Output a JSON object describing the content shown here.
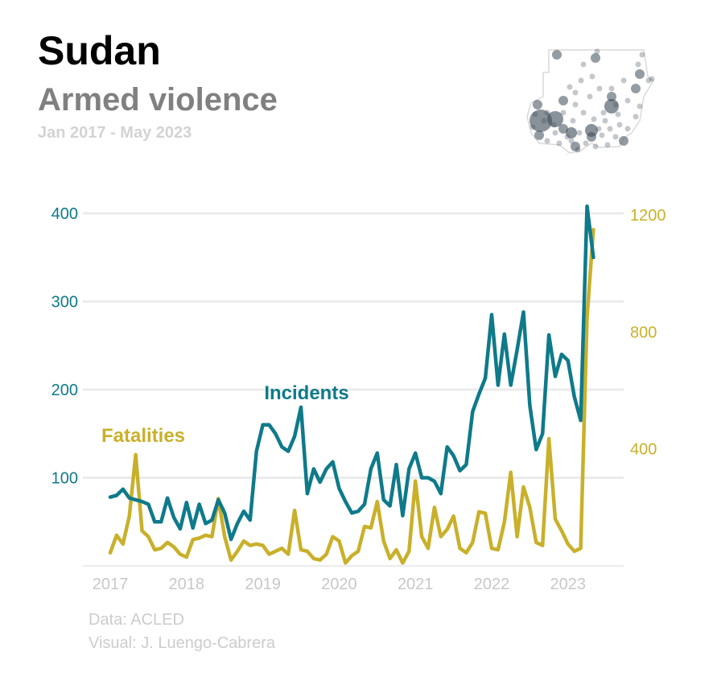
{
  "header": {
    "title": "Sudan",
    "subtitle": "Armed violence",
    "period": "Jan 2017 - May 2023"
  },
  "footer": {
    "data_source": "Data: ACLED",
    "visual_credit": "Visual: J. Luengo-Cabrera"
  },
  "colors": {
    "incidents": "#0e7a8a",
    "fatalities": "#c9b02a",
    "grid": "#ebebeb",
    "axis_text_muted": "#c8c8c8"
  },
  "chart_data": {
    "type": "line",
    "x_start": "2017-01",
    "x_end": "2023-05",
    "x_tick_labels": [
      "2017",
      "2018",
      "2019",
      "2020",
      "2021",
      "2022",
      "2023"
    ],
    "left_axis": {
      "ylim": [
        0,
        400
      ],
      "ticks": [
        100,
        200,
        300,
        400
      ]
    },
    "right_axis": {
      "ylim": [
        0,
        1200
      ],
      "ticks": [
        400,
        800,
        1200
      ]
    },
    "grid": true,
    "series": [
      {
        "name": "Incidents",
        "axis": "left",
        "values": [
          78,
          80,
          87,
          77,
          75,
          73,
          70,
          50,
          50,
          77,
          55,
          42,
          72,
          43,
          70,
          48,
          52,
          75,
          60,
          30,
          48,
          62,
          52,
          130,
          160,
          160,
          150,
          135,
          130,
          147,
          180,
          82,
          110,
          95,
          110,
          118,
          88,
          73,
          60,
          62,
          70,
          110,
          128,
          75,
          68,
          115,
          57,
          110,
          128,
          100,
          100,
          96,
          82,
          135,
          125,
          108,
          115,
          175,
          195,
          213,
          285,
          205,
          263,
          205,
          245,
          288,
          182,
          132,
          150,
          262,
          215,
          240,
          233,
          192,
          165,
          408,
          350
        ]
      },
      {
        "name": "Fatalities",
        "axis": "right",
        "values": [
          45,
          105,
          75,
          170,
          380,
          120,
          100,
          55,
          60,
          80,
          65,
          40,
          30,
          90,
          95,
          105,
          100,
          230,
          100,
          20,
          50,
          85,
          70,
          75,
          70,
          40,
          50,
          60,
          40,
          190,
          55,
          50,
          25,
          20,
          40,
          100,
          85,
          10,
          35,
          50,
          135,
          130,
          220,
          85,
          25,
          55,
          10,
          50,
          290,
          100,
          60,
          200,
          100,
          125,
          170,
          60,
          45,
          80,
          185,
          180,
          60,
          55,
          150,
          320,
          100,
          270,
          200,
          80,
          70,
          435,
          160,
          120,
          75,
          50,
          60,
          850,
          1150
        ]
      }
    ],
    "annotations": [
      {
        "text": "Incidents",
        "series": "Incidents"
      },
      {
        "text": "Fatalities",
        "series": "Fatalities"
      }
    ]
  },
  "map": {
    "points": [
      [
        692,
        68
      ],
      [
        742,
        64
      ],
      [
        798,
        68
      ],
      [
        793,
        80
      ],
      [
        806,
        100
      ],
      [
        740,
        72
      ],
      [
        736,
        95
      ],
      [
        745,
        110
      ],
      [
        722,
        100
      ],
      [
        708,
        108
      ],
      [
        700,
        125
      ],
      [
        715,
        130
      ],
      [
        733,
        120
      ],
      [
        760,
        110
      ],
      [
        775,
        100
      ],
      [
        790,
        110
      ],
      [
        780,
        125
      ],
      [
        765,
        130
      ],
      [
        768,
        142
      ],
      [
        790,
        145
      ],
      [
        760,
        120
      ],
      [
        750,
        140
      ],
      [
        738,
        148
      ],
      [
        725,
        140
      ],
      [
        712,
        150
      ],
      [
        700,
        160
      ],
      [
        688,
        155
      ],
      [
        676,
        150
      ],
      [
        665,
        142
      ],
      [
        662,
        158
      ],
      [
        670,
        168
      ],
      [
        680,
        175
      ],
      [
        695,
        178
      ],
      [
        710,
        175
      ],
      [
        720,
        165
      ],
      [
        735,
        170
      ],
      [
        748,
        168
      ],
      [
        758,
        160
      ],
      [
        770,
        155
      ],
      [
        780,
        160
      ],
      [
        775,
        175
      ],
      [
        765,
        170
      ],
      [
        755,
        180
      ],
      [
        740,
        182
      ],
      [
        728,
        178
      ],
      [
        715,
        182
      ],
      [
        705,
        170
      ],
      [
        690,
        165
      ],
      [
        700,
        140
      ],
      [
        680,
        140
      ],
      [
        668,
        130
      ],
      [
        705,
        195
      ],
      [
        718,
        186
      ],
      [
        744,
        160
      ],
      [
        752,
        150
      ],
      [
        795,
        92
      ],
      [
        725,
        80
      ],
      [
        715,
        115
      ],
      [
        795,
        132
      ],
      [
        810,
        98
      ]
    ]
  }
}
